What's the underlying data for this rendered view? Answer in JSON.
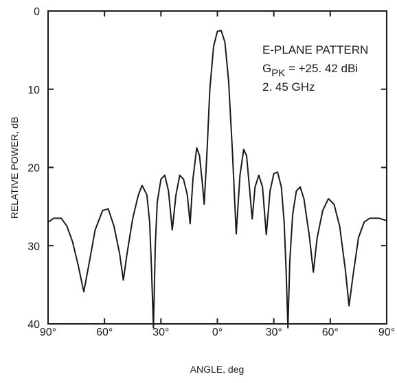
{
  "chart_data": {
    "type": "line",
    "xlabel": "ANGLE, deg",
    "ylabel": "RELATIVE POWER, dB",
    "xlim": [
      -90,
      90
    ],
    "ylim": [
      0,
      40
    ],
    "y_inverted": true,
    "grid": false,
    "x_ticks": [
      {
        "value": -90,
        "label": "90°"
      },
      {
        "value": -60,
        "label": "60°"
      },
      {
        "value": -30,
        "label": "30°"
      },
      {
        "value": 0,
        "label": "0°"
      },
      {
        "value": 30,
        "label": "30°"
      },
      {
        "value": 60,
        "label": "60°"
      },
      {
        "value": 90,
        "label": "90°"
      }
    ],
    "y_ticks": [
      {
        "value": 0,
        "label": "0"
      },
      {
        "value": 10,
        "label": "10"
      },
      {
        "value": 20,
        "label": "20"
      },
      {
        "value": 30,
        "label": "30"
      },
      {
        "value": 40,
        "label": "40"
      }
    ],
    "annotations": {
      "line1": "E-PLANE PATTERN",
      "gain_symbol": "G",
      "gain_subscript": "PK",
      "gain_value": " = +25. 42 dBi",
      "line3": "2. 45 GHz"
    },
    "series": [
      {
        "color": "#1a1a1a",
        "points": [
          [
            -90,
            27.0
          ],
          [
            -87,
            26.5
          ],
          [
            -83,
            26.5
          ],
          [
            -80,
            27.5
          ],
          [
            -77,
            29.5
          ],
          [
            -74,
            32.5
          ],
          [
            -71,
            35.9
          ],
          [
            -68,
            32.0
          ],
          [
            -65,
            28.0
          ],
          [
            -61,
            25.5
          ],
          [
            -58,
            25.3
          ],
          [
            -55,
            27.5
          ],
          [
            -52,
            31.0
          ],
          [
            -50,
            34.4
          ],
          [
            -48,
            31.0
          ],
          [
            -45,
            26.5
          ],
          [
            -42,
            23.5
          ],
          [
            -40,
            22.3
          ],
          [
            -37.5,
            23.5
          ],
          [
            -36,
            27.0
          ],
          [
            -35,
            33.0
          ],
          [
            -34,
            40.5
          ],
          [
            -33,
            30.0
          ],
          [
            -32,
            24.5
          ],
          [
            -30,
            21.5
          ],
          [
            -28,
            21.0
          ],
          [
            -26,
            23.0
          ],
          [
            -24,
            28.0
          ],
          [
            -22,
            23.5
          ],
          [
            -20,
            21.0
          ],
          [
            -18,
            21.5
          ],
          [
            -16,
            23.5
          ],
          [
            -14.5,
            27.2
          ],
          [
            -13,
            21.5
          ],
          [
            -11,
            17.5
          ],
          [
            -9.5,
            18.5
          ],
          [
            -8,
            22.0
          ],
          [
            -7,
            24.7
          ],
          [
            -5.5,
            18.0
          ],
          [
            -4,
            10.0
          ],
          [
            -2,
            4.5
          ],
          [
            0,
            2.6
          ],
          [
            2,
            2.5
          ],
          [
            4,
            4.0
          ],
          [
            6,
            9.0
          ],
          [
            8,
            18.0
          ],
          [
            10,
            28.5
          ],
          [
            12,
            21.0
          ],
          [
            14,
            17.7
          ],
          [
            15.5,
            18.5
          ],
          [
            17,
            22.5
          ],
          [
            18.5,
            26.6
          ],
          [
            20,
            22.5
          ],
          [
            22,
            21.0
          ],
          [
            24,
            22.5
          ],
          [
            26,
            28.6
          ],
          [
            28,
            23.0
          ],
          [
            30,
            20.8
          ],
          [
            32,
            20.6
          ],
          [
            34,
            22.5
          ],
          [
            35.5,
            27.0
          ],
          [
            36.5,
            33.0
          ],
          [
            37.5,
            40.5
          ],
          [
            38.5,
            32.0
          ],
          [
            40,
            26.0
          ],
          [
            42,
            23.0
          ],
          [
            44,
            22.5
          ],
          [
            46,
            24.0
          ],
          [
            49,
            29.0
          ],
          [
            51,
            33.4
          ],
          [
            53,
            29.0
          ],
          [
            56,
            25.5
          ],
          [
            59,
            24.0
          ],
          [
            62,
            24.7
          ],
          [
            65,
            27.5
          ],
          [
            68,
            33.0
          ],
          [
            70,
            37.7
          ],
          [
            72,
            34.0
          ],
          [
            75,
            29.0
          ],
          [
            78,
            27.0
          ],
          [
            81,
            26.5
          ],
          [
            86,
            26.5
          ],
          [
            90,
            26.8
          ]
        ]
      }
    ]
  }
}
